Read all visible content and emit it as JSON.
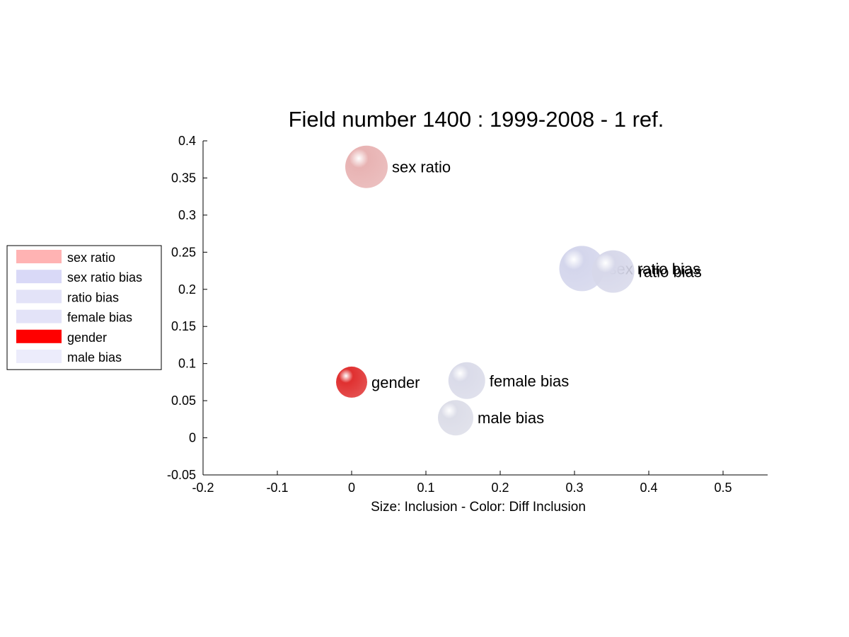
{
  "chart_data": {
    "type": "scatter",
    "title": "Field number 1400 : 1999-2008  - 1 ref.",
    "xlabel": "Size: Inclusion - Color: Diff Inclusion",
    "ylabel": "",
    "xlim": [
      -0.2,
      0.56
    ],
    "ylim": [
      -0.05,
      0.4
    ],
    "x_ticks": [
      "-0.2",
      "-0.1",
      "0",
      "0.1",
      "0.2",
      "0.3",
      "0.4",
      "0.5"
    ],
    "y_ticks": [
      "-0.05",
      "0",
      "0.05",
      "0.1",
      "0.15",
      "0.2",
      "0.25",
      "0.3",
      "0.35",
      "0.4"
    ],
    "grid": false,
    "legend_position": "left",
    "points": [
      {
        "label": "sex ratio",
        "x": 0.02,
        "y": 0.365,
        "size": 0.3,
        "color": "#e8b3b3"
      },
      {
        "label": "sex ratio bias",
        "x": 0.31,
        "y": 0.228,
        "size": 0.32,
        "color": "#d4d6ec"
      },
      {
        "label": "ratio bias",
        "x": 0.352,
        "y": 0.224,
        "size": 0.3,
        "color": "#d7d8ea"
      },
      {
        "label": "female bias",
        "x": 0.155,
        "y": 0.077,
        "size": 0.26,
        "color": "#dadbe9"
      },
      {
        "label": "gender",
        "x": 0.0,
        "y": 0.075,
        "size": 0.22,
        "color": "#e03030"
      },
      {
        "label": "male bias",
        "x": 0.14,
        "y": 0.027,
        "size": 0.25,
        "color": "#dcdde8"
      }
    ],
    "legend": [
      {
        "label": "sex ratio",
        "color": "#ffb3b3"
      },
      {
        "label": "sex ratio bias",
        "color": "#d9d9f7"
      },
      {
        "label": "ratio bias",
        "color": "#e3e3f8"
      },
      {
        "label": "female bias",
        "color": "#e3e3f8"
      },
      {
        "label": "gender",
        "color": "#ff0000"
      },
      {
        "label": "male bias",
        "color": "#ececfb"
      }
    ]
  }
}
